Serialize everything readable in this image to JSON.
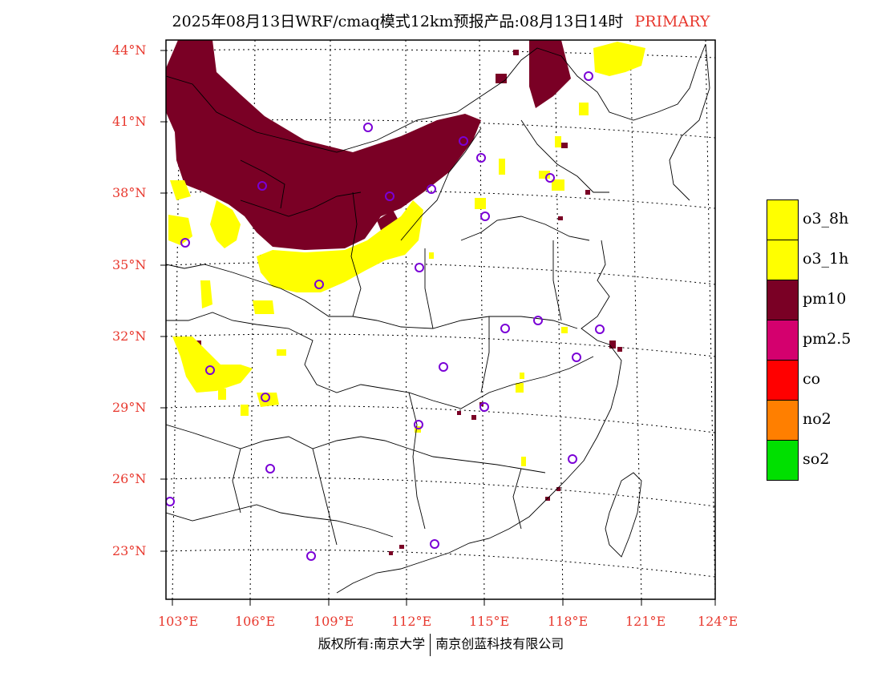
{
  "title": {
    "main": "2025年08月13日WRF/cmaq模式12km预报产品:08月13日14时",
    "tag": "PRIMARY"
  },
  "lat_labels": [
    "44°N",
    "41°N",
    "38°N",
    "35°N",
    "32°N",
    "29°N",
    "26°N",
    "23°N"
  ],
  "lon_labels": [
    "103°E",
    "106°E",
    "109°E",
    "112°E",
    "115°E",
    "118°E",
    "121°E",
    "124°E"
  ],
  "legend": [
    {
      "label": "o3_8h",
      "color": "#ffff00"
    },
    {
      "label": "o3_1h",
      "color": "#ffff00"
    },
    {
      "label": "pm10",
      "color": "#7a0025"
    },
    {
      "label": "pm2.5",
      "color": "#d4006e"
    },
    {
      "label": "co",
      "color": "#ff0000"
    },
    {
      "label": "no2",
      "color": "#ff7f00"
    },
    {
      "label": "so2",
      "color": "#00e000"
    }
  ],
  "footer": {
    "left": "版权所有:南京大学",
    "right": "南京创蓝科技有限公司"
  }
}
